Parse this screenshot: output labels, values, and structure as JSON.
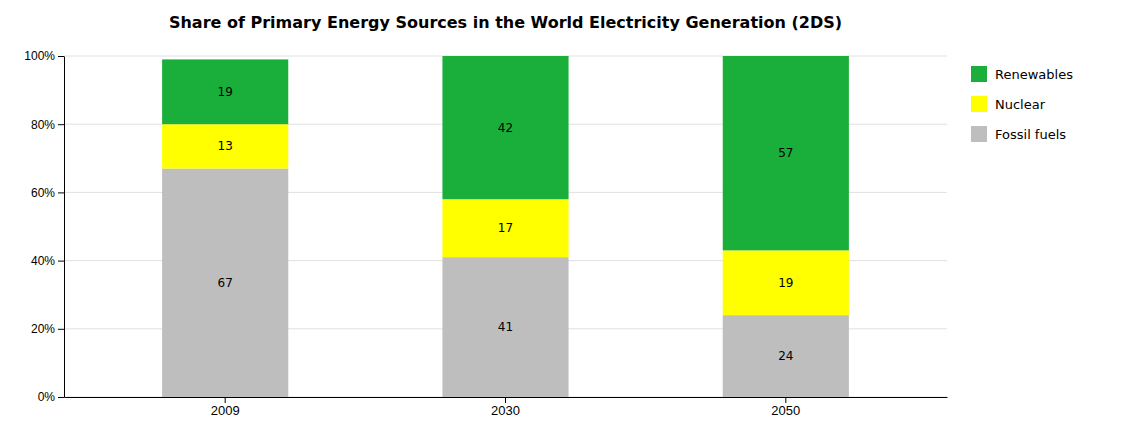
{
  "chart_data": {
    "type": "bar",
    "title": "Share of Primary Energy Sources in the World Electricity Generation (2DS)",
    "categories": [
      "2009",
      "2030",
      "2050"
    ],
    "series": [
      {
        "name": "Fossil fuels",
        "color": "#BEBEBE",
        "values": [
          67,
          41,
          24
        ]
      },
      {
        "name": "Nuclear",
        "color": "#FFFF00",
        "values": [
          13,
          17,
          19
        ]
      },
      {
        "name": "Renewables",
        "color": "#1AAF3A",
        "values": [
          19,
          42,
          57
        ]
      }
    ],
    "stacked": true,
    "data_labels": true,
    "ylim": [
      0,
      100
    ],
    "yticks": [
      {
        "value": 0,
        "label": "0%"
      },
      {
        "value": 20,
        "label": "20%"
      },
      {
        "value": 40,
        "label": "40%"
      },
      {
        "value": 60,
        "label": "60%"
      },
      {
        "value": 80,
        "label": "80%"
      },
      {
        "value": 100,
        "label": "100%"
      }
    ],
    "grid": true,
    "legend": "right"
  }
}
